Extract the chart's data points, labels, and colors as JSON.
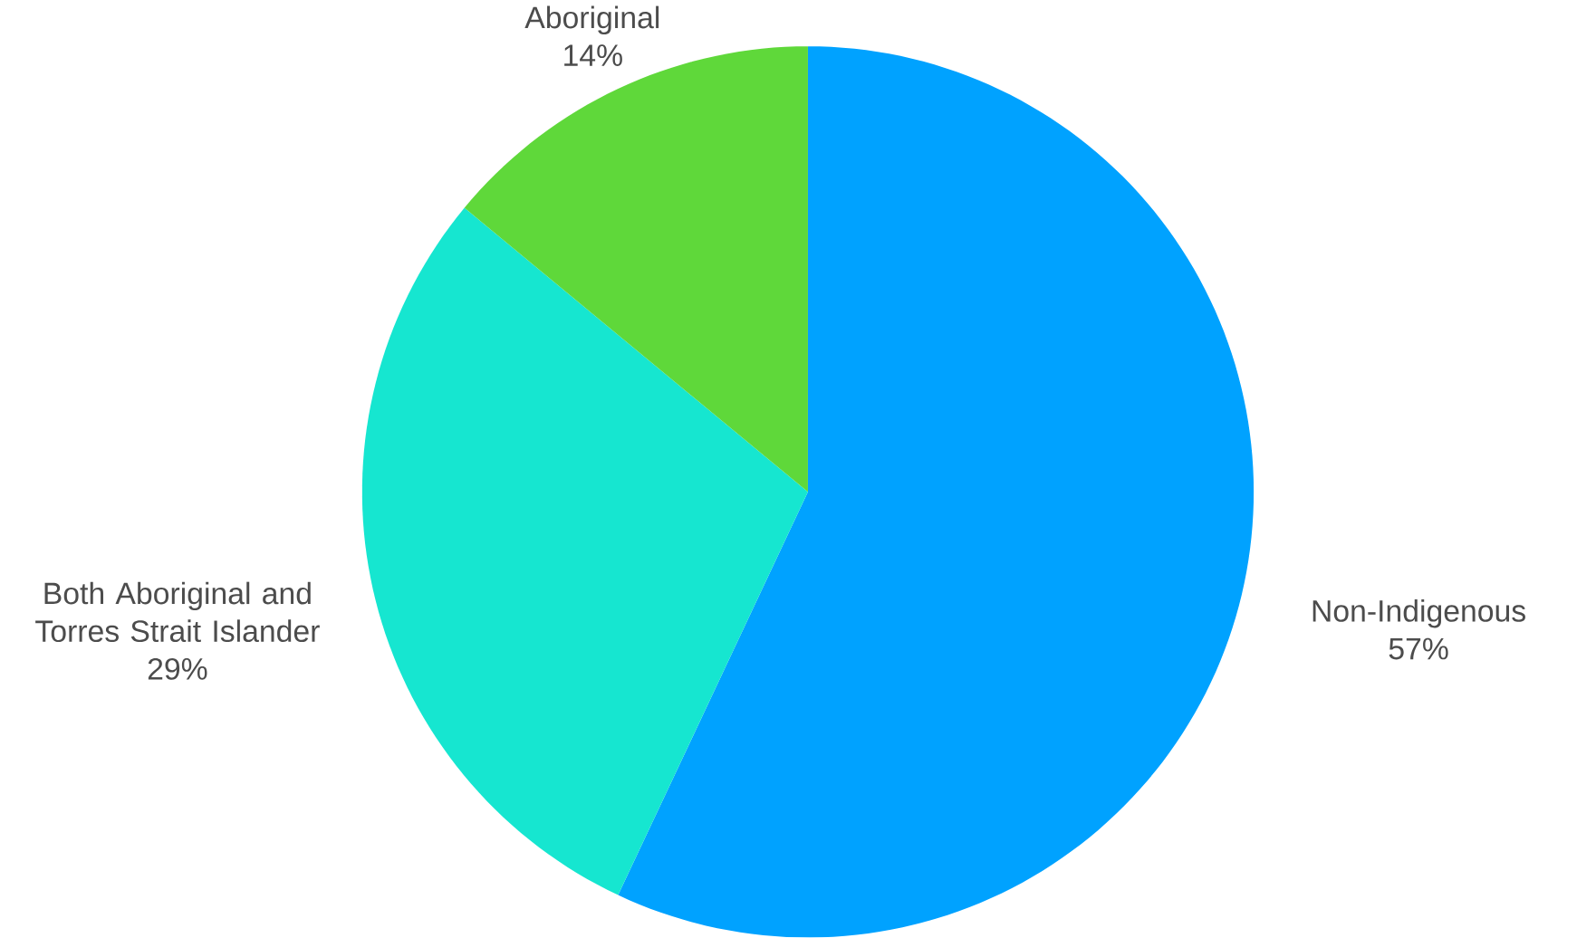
{
  "chart_data": {
    "type": "pie",
    "categories": [
      "Non-Indigenous",
      "Both Aboriginal and Torres Strait Islander",
      "Aboriginal"
    ],
    "values": [
      57,
      29,
      14
    ],
    "colors": [
      "#00a2ff",
      "#16e6d0",
      "#5fd83a"
    ],
    "value_labels": [
      "57%",
      "29%",
      "14%"
    ]
  }
}
